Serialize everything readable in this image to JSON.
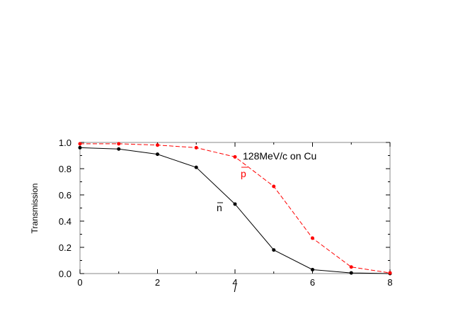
{
  "chart_data": {
    "type": "line",
    "title": "",
    "xlabel": "l",
    "ylabel": "Transmission",
    "xlim": [
      0,
      8
    ],
    "ylim": [
      0.0,
      1.0
    ],
    "xticks": [
      "0",
      "2",
      "4",
      "6",
      "8"
    ],
    "yticks": [
      "0.0",
      "0.2",
      "0.4",
      "0.6",
      "0.8",
      "1.0"
    ],
    "grid": false,
    "annotation": "128MeV/c on Cu",
    "x": [
      0,
      1,
      2,
      3,
      4,
      5,
      6,
      7,
      8
    ],
    "series": [
      {
        "name": "n̄",
        "label_text": "n",
        "color": "#000000",
        "style": "solid",
        "values": [
          0.96,
          0.95,
          0.91,
          0.81,
          0.53,
          0.18,
          0.03,
          0.005,
          0.0
        ]
      },
      {
        "name": "p̄",
        "label_text": "p",
        "color": "#ff0000",
        "style": "dashed",
        "values": [
          0.99,
          0.99,
          0.98,
          0.96,
          0.89,
          0.665,
          0.27,
          0.05,
          0.005
        ]
      }
    ]
  }
}
